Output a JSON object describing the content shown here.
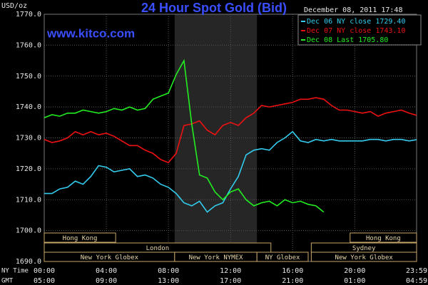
{
  "chart_data": {
    "type": "line",
    "title": "24 Hour Spot Gold (Bid)",
    "watermark": "www.kitco.com",
    "y_label": "USD/oz",
    "timestamp": "December 08, 2011 17:48",
    "legend": "top-right",
    "grid": true,
    "x_row_labels": [
      "NY Time",
      "GMT"
    ],
    "x": [
      0,
      0.5,
      1,
      1.5,
      2,
      2.5,
      3,
      3.5,
      4,
      4.5,
      5,
      5.5,
      6,
      6.5,
      7,
      7.5,
      8,
      8.5,
      9,
      9.5,
      10,
      10.5,
      11,
      11.5,
      12,
      12.5,
      13,
      13.5,
      14,
      14.5,
      15,
      15.5,
      16,
      16.5,
      17,
      17.5,
      18,
      18.5,
      19,
      19.5,
      20,
      20.5,
      21,
      21.5,
      22,
      22.5,
      23,
      23.5,
      23.98
    ],
    "xlim": [
      0,
      23.983
    ],
    "xticks": [
      {
        "value": 0,
        "label": "00:00"
      },
      {
        "value": 4,
        "label": "04:00"
      },
      {
        "value": 8,
        "label": "08:00"
      },
      {
        "value": 12,
        "label": "12:00"
      },
      {
        "value": 16,
        "label": "16:00"
      },
      {
        "value": 20,
        "label": "20:00"
      },
      {
        "value": 23.983,
        "label": "23:59"
      }
    ],
    "gmt_ticks": [
      {
        "value": 0,
        "label": "05:00"
      },
      {
        "value": 4,
        "label": "09:00"
      },
      {
        "value": 8,
        "label": "13:00"
      },
      {
        "value": 12,
        "label": "17:00"
      },
      {
        "value": 16,
        "label": "21:00"
      },
      {
        "value": 20,
        "label": "01:00"
      },
      {
        "value": 23.983,
        "label": "04:59"
      }
    ],
    "ylim": [
      1690,
      1770
    ],
    "yticks": [
      {
        "value": 1690,
        "label": "1690.0"
      },
      {
        "value": 1700,
        "label": "1700.0"
      },
      {
        "value": 1710,
        "label": "1710.0"
      },
      {
        "value": 1720,
        "label": "1720.0"
      },
      {
        "value": 1730,
        "label": "1730.0"
      },
      {
        "value": 1740,
        "label": "1740.0"
      },
      {
        "value": 1750,
        "label": "1750.0"
      },
      {
        "value": 1760,
        "label": "1760.0"
      },
      {
        "value": 1770,
        "label": "1770.0"
      }
    ],
    "highlight": [
      8.4,
      13.7
    ],
    "sessions": [
      {
        "label": "Hong Kong",
        "row": 0,
        "start": 0,
        "end": 4.6
      },
      {
        "label": "Hong Kong",
        "row": 0,
        "start": 19.7,
        "end": 23.983
      },
      {
        "label": "London",
        "row": 1,
        "start": 0,
        "end": 14.6
      },
      {
        "label": "Sydney",
        "row": 1,
        "start": 17.2,
        "end": 23.983
      },
      {
        "label": "New York Globex",
        "row": 2,
        "start": 0,
        "end": 8.4
      },
      {
        "label": "New York NYMEX",
        "row": 2,
        "start": 8.4,
        "end": 13.7
      },
      {
        "label": "NY Globex",
        "row": 2,
        "start": 13.7,
        "end": 17.0
      },
      {
        "label": "New York Globex",
        "row": 2,
        "start": 17.2,
        "end": 23.983
      }
    ],
    "series": [
      {
        "name": "Dec 06 NY close 1729.40",
        "color": "#33ccee",
        "values": [
          1712,
          1712,
          1713.5,
          1714,
          1716,
          1715,
          1717.5,
          1721,
          1720.5,
          1719,
          1719.5,
          1720,
          1717.5,
          1718,
          1717,
          1715,
          1714,
          1712,
          1709,
          1708,
          1709.5,
          1706,
          1708,
          1709,
          1713.5,
          1717.5,
          1724.5,
          1726,
          1726.5,
          1726,
          1728.5,
          1730,
          1732,
          1729,
          1728.5,
          1729.5,
          1729,
          1729.5,
          1729,
          1729,
          1729,
          1729,
          1729.5,
          1729.5,
          1729,
          1729.5,
          1729.5,
          1729,
          1729.4
        ]
      },
      {
        "name": "Dec 07 NY close 1743.10",
        "color": "#ee1111",
        "values": [
          1729.5,
          1728.5,
          1729,
          1730,
          1732,
          1731,
          1732,
          1731,
          1731.5,
          1730.5,
          1729,
          1727.5,
          1727.5,
          1726,
          1725,
          1723,
          1722,
          1725,
          1734,
          1734.5,
          1735.5,
          1732.5,
          1731,
          1734,
          1735,
          1734,
          1736.5,
          1738,
          1740.5,
          1740,
          1740.5,
          1741,
          1741.5,
          1742.5,
          1742.5,
          1743,
          1742.5,
          1740.5,
          1739,
          1739,
          1738.5,
          1738,
          1738.5,
          1737,
          1738,
          1738.5,
          1739,
          1738,
          1737.3
        ]
      },
      {
        "name": "Dec 08 Last 1705.80",
        "color": "#22ee22",
        "values": [
          1736.5,
          1737.5,
          1737,
          1738,
          1738,
          1739,
          1738.5,
          1738,
          1738.5,
          1739.5,
          1739,
          1740,
          1739,
          1739.5,
          1742.5,
          1743.5,
          1744.5,
          1750.5,
          1755,
          1734.5,
          1718,
          1717,
          1712.5,
          1710,
          1712.5,
          1713.5,
          1710,
          1708,
          1709,
          1709.5,
          1708,
          1710,
          1709,
          1709.5,
          1708.5,
          1708,
          1706,
          null,
          null,
          null,
          null,
          null,
          null,
          null,
          null,
          null,
          null,
          null,
          null
        ]
      }
    ]
  }
}
